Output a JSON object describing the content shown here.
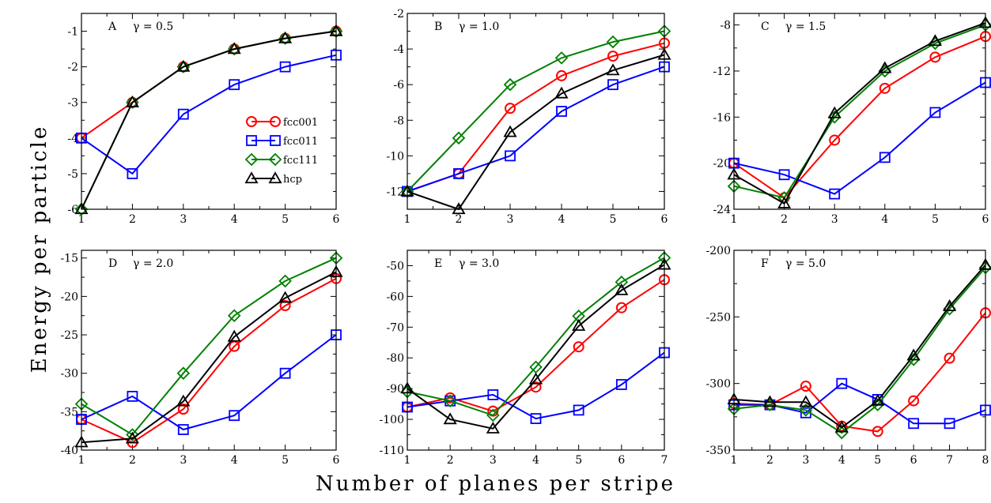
{
  "ylabel": "Energy per particle",
  "xlabel": "Number of planes per stripe",
  "legend": {
    "placement": "inside panel A, center-right",
    "entries": [
      {
        "label": "fcc001",
        "marker": "circle",
        "color": "#ff0000"
      },
      {
        "label": "fcc011",
        "marker": "square",
        "color": "#0000ff"
      },
      {
        "label": "fcc111",
        "marker": "diamond",
        "color": "#008000"
      },
      {
        "label": "hcp",
        "marker": "triangle",
        "color": "#000000"
      }
    ]
  },
  "chart_data": [
    {
      "type": "line",
      "panel": "A",
      "annotation": "γ = 0.5",
      "x": [
        1,
        2,
        3,
        4,
        5,
        6
      ],
      "xlim": [
        1,
        6
      ],
      "ylim": [
        -6,
        -0.5
      ],
      "xticks": [
        1,
        2,
        3,
        4,
        5,
        6
      ],
      "yticks": [
        -6,
        -5,
        -4,
        -3,
        -2,
        -1
      ],
      "series": [
        {
          "name": "fcc001",
          "values": [
            -4,
            -3,
            -2,
            -1.5,
            -1.2,
            -1
          ]
        },
        {
          "name": "fcc011",
          "values": [
            -4,
            -5,
            -3.33,
            -2.5,
            -2,
            -1.67
          ]
        },
        {
          "name": "fcc111",
          "values": [
            -6,
            -3,
            -2,
            -1.5,
            -1.2,
            -1
          ]
        },
        {
          "name": "hcp",
          "values": [
            -6,
            -3,
            -2,
            -1.5,
            -1.2,
            -1
          ]
        }
      ]
    },
    {
      "type": "line",
      "panel": "B",
      "annotation": "γ = 1.0",
      "x": [
        1,
        2,
        3,
        4,
        5,
        6
      ],
      "xlim": [
        1,
        6
      ],
      "ylim": [
        -13,
        -2
      ],
      "xticks": [
        1,
        2,
        3,
        4,
        5,
        6
      ],
      "yticks": [
        -12,
        -10,
        -8,
        -6,
        -4,
        -2
      ],
      "series": [
        {
          "name": "fcc001",
          "values": [
            -12,
            -11,
            -7.33,
            -5.5,
            -4.4,
            -3.67
          ]
        },
        {
          "name": "fcc011",
          "values": [
            -12,
            -11,
            -10,
            -7.5,
            -6,
            -5
          ]
        },
        {
          "name": "fcc111",
          "values": [
            -12,
            -9,
            -6,
            -4.5,
            -3.6,
            -3
          ]
        },
        {
          "name": "hcp",
          "values": [
            -12,
            -13,
            -8.67,
            -6.5,
            -5.2,
            -4.33
          ]
        }
      ]
    },
    {
      "type": "line",
      "panel": "C",
      "annotation": "γ = 1.5",
      "x": [
        1,
        2,
        3,
        4,
        5,
        6
      ],
      "xlim": [
        1,
        6
      ],
      "ylim": [
        -24,
        -7
      ],
      "xticks": [
        1,
        2,
        3,
        4,
        5,
        6
      ],
      "yticks": [
        -24,
        -20,
        -16,
        -12,
        -8
      ],
      "series": [
        {
          "name": "fcc001",
          "values": [
            -20,
            -23,
            -18,
            -13.5,
            -10.8,
            -9
          ]
        },
        {
          "name": "fcc011",
          "values": [
            -20,
            -21,
            -22.67,
            -19.5,
            -15.6,
            -13
          ]
        },
        {
          "name": "fcc111",
          "values": [
            -22,
            -23,
            -16,
            -12,
            -9.6,
            -8
          ]
        },
        {
          "name": "hcp",
          "values": [
            -21,
            -23.5,
            -15.67,
            -11.75,
            -9.4,
            -7.83
          ]
        }
      ]
    },
    {
      "type": "line",
      "panel": "D",
      "annotation": "γ = 2.0",
      "x": [
        1,
        2,
        3,
        4,
        5,
        6
      ],
      "xlim": [
        1,
        6
      ],
      "ylim": [
        -40,
        -14
      ],
      "xticks": [
        1,
        2,
        3,
        4,
        5,
        6
      ],
      "yticks": [
        -40,
        -35,
        -30,
        -25,
        -20,
        -15
      ],
      "series": [
        {
          "name": "fcc001",
          "values": [
            -36,
            -39,
            -34.67,
            -26.5,
            -21.2,
            -17.67
          ]
        },
        {
          "name": "fcc011",
          "values": [
            -36,
            -33,
            -37.33,
            -35.5,
            -30,
            -25
          ]
        },
        {
          "name": "fcc111",
          "values": [
            -34,
            -38,
            -30,
            -22.5,
            -18,
            -15
          ]
        },
        {
          "name": "hcp",
          "values": [
            -39,
            -38.5,
            -33.67,
            -25.25,
            -20.2,
            -16.83
          ]
        }
      ]
    },
    {
      "type": "line",
      "panel": "E",
      "annotation": "γ = 3.0",
      "x": [
        1,
        2,
        3,
        4,
        5,
        6,
        7
      ],
      "xlim": [
        1,
        7
      ],
      "ylim": [
        -110,
        -45
      ],
      "xticks": [
        1,
        2,
        3,
        4,
        5,
        6,
        7
      ],
      "yticks": [
        -110,
        -100,
        -90,
        -80,
        -70,
        -60,
        -50
      ],
      "series": [
        {
          "name": "fcc001",
          "values": [
            -96,
            -93,
            -97.33,
            -89.5,
            -76.4,
            -63.67,
            -54.57
          ]
        },
        {
          "name": "fcc011",
          "values": [
            -96,
            -94,
            -92,
            -99.75,
            -97,
            -88.67,
            -78.29
          ]
        },
        {
          "name": "fcc111",
          "values": [
            -91,
            -94,
            -98.67,
            -83,
            -66.4,
            -55.33,
            -47.43
          ]
        },
        {
          "name": "hcp",
          "values": [
            -90,
            -100,
            -103,
            -87,
            -69.6,
            -58,
            -49.71
          ]
        }
      ]
    },
    {
      "type": "line",
      "panel": "F",
      "annotation": "γ = 5.0",
      "x": [
        1,
        2,
        3,
        4,
        5,
        6,
        7,
        8
      ],
      "xlim": [
        1,
        8
      ],
      "ylim": [
        -350,
        -200
      ],
      "xticks": [
        1,
        2,
        3,
        4,
        5,
        6,
        7,
        8
      ],
      "yticks": [
        -350,
        -300,
        -250,
        -200
      ],
      "series": [
        {
          "name": "fcc001",
          "values": [
            -315,
            -316,
            -302,
            -332,
            -336,
            -313,
            -281,
            -247
          ]
        },
        {
          "name": "fcc011",
          "values": [
            -316,
            -316,
            -322,
            -300,
            -312,
            -330,
            -330,
            -320
          ]
        },
        {
          "name": "fcc111",
          "values": [
            -319,
            -316,
            -320,
            -337,
            -316,
            -282,
            -244,
            -213
          ]
        },
        {
          "name": "hcp",
          "values": [
            -312,
            -314,
            -314,
            -333,
            -313,
            -279,
            -242,
            -211
          ]
        }
      ]
    }
  ]
}
